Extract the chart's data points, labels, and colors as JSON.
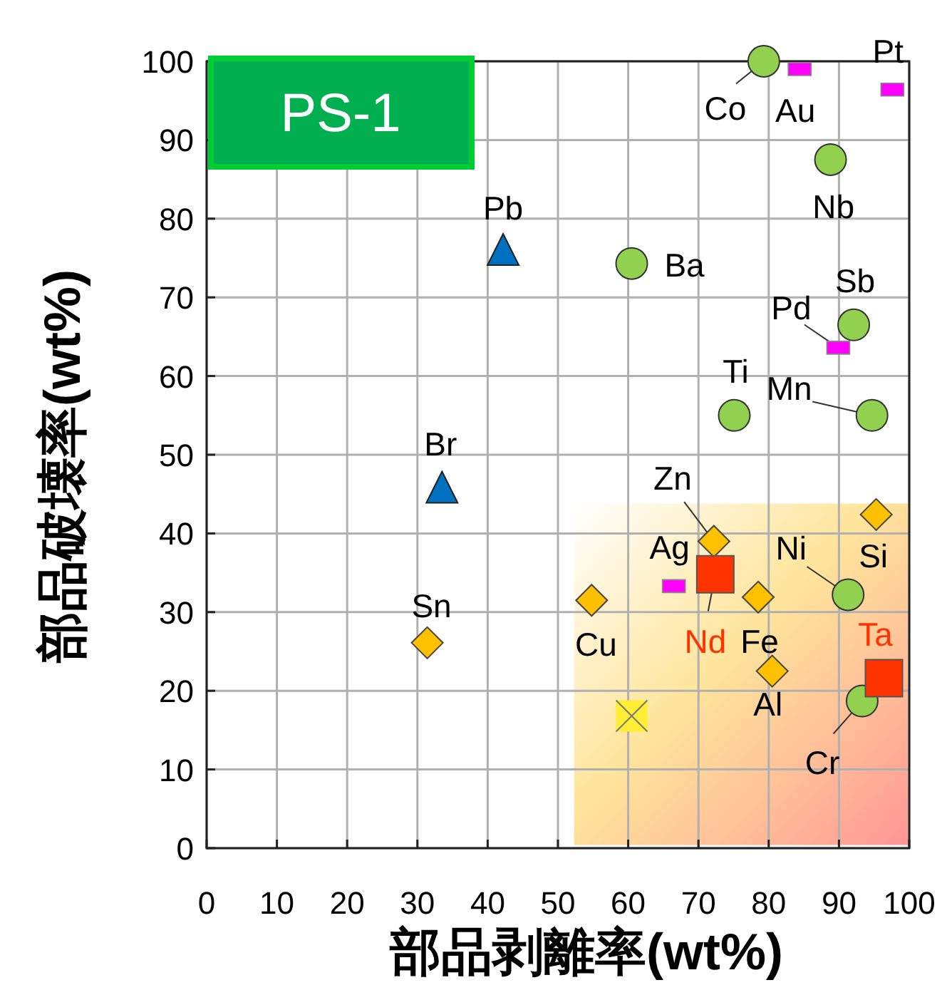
{
  "chart_data": {
    "type": "scatter",
    "xlabel": "部品剥離率(wt%)",
    "ylabel": "部品破壊率(wt%)",
    "xlim": [
      0,
      100
    ],
    "ylim": [
      0,
      100
    ],
    "xticks": [
      0,
      10,
      20,
      30,
      40,
      50,
      60,
      70,
      80,
      90,
      100
    ],
    "yticks": [
      0,
      10,
      20,
      30,
      40,
      50,
      60,
      70,
      80,
      90,
      100
    ],
    "grid": true,
    "series": [
      {
        "color": "#92d050",
        "marker": "circle",
        "x": [
          79.3,
          88.8,
          60.5,
          92.1,
          75.1,
          94.7,
          91.3,
          93.3
        ],
        "values": [
          100,
          87.5,
          74.3,
          66.5,
          55,
          55,
          32.2,
          18.7
        ]
      },
      {
        "color": "#0070c0",
        "marker": "triangle",
        "x": [
          42.2,
          33.5
        ],
        "values": [
          75.9,
          45.7
        ]
      },
      {
        "color": "#ffc000",
        "marker": "diamond",
        "x": [
          72.2,
          95.3,
          78.5,
          54.8,
          31.4,
          80.5
        ],
        "values": [
          39,
          42.4,
          31.9,
          31.5,
          26.1,
          22.5
        ]
      },
      {
        "color": "#ff00ff",
        "marker": "square",
        "x": [
          84.4,
          97.6,
          89.9,
          66.5
        ],
        "values": [
          99,
          96.4,
          63.6,
          33.3
        ]
      },
      {
        "color": "#ff3300",
        "marker": "square",
        "x": [
          72.4,
          96.4
        ],
        "values": [
          34.8,
          21.6
        ]
      },
      {
        "color": "#ffee33",
        "marker": "square",
        "x": [
          60.5
        ],
        "values": [
          16.8
        ]
      }
    ],
    "annotations": [
      "PS-1",
      {
        "text": "Co",
        "x": 79.3,
        "y": 100
      },
      {
        "text": "Au",
        "x": 84.4,
        "y": 99
      },
      {
        "text": "Pt",
        "x": 97.6,
        "y": 96.4
      },
      {
        "text": "Nb",
        "x": 88.8,
        "y": 87.5
      },
      {
        "text": "Pb",
        "x": 42.2,
        "y": 75.9
      },
      {
        "text": "Ba",
        "x": 60.5,
        "y": 74.3
      },
      {
        "text": "Sb",
        "x": 92.1,
        "y": 66.5
      },
      {
        "text": "Pd",
        "x": 89.9,
        "y": 63.6
      },
      {
        "text": "Ti",
        "x": 75.1,
        "y": 55
      },
      {
        "text": "Mn",
        "x": 94.7,
        "y": 55
      },
      {
        "text": "Br",
        "x": 33.5,
        "y": 45.7
      },
      {
        "text": "Zn",
        "x": 72.2,
        "y": 39
      },
      {
        "text": "Si",
        "x": 95.3,
        "y": 42.4
      },
      {
        "text": "Ag",
        "x": 66.5,
        "y": 33.3
      },
      {
        "text": "Nd",
        "x": 72.4,
        "y": 34.8
      },
      {
        "text": "Fe",
        "x": 78.5,
        "y": 31.9
      },
      {
        "text": "Cu",
        "x": 54.8,
        "y": 31.5
      },
      {
        "text": "Ni",
        "x": 91.3,
        "y": 32.2
      },
      {
        "text": "Sn",
        "x": 31.4,
        "y": 26.1
      },
      {
        "text": "Al",
        "x": 80.5,
        "y": 22.5
      },
      {
        "text": "Ta",
        "x": 96.4,
        "y": 21.6
      },
      {
        "text": "Cr",
        "x": 93.3,
        "y": 18.7
      }
    ]
  }
}
